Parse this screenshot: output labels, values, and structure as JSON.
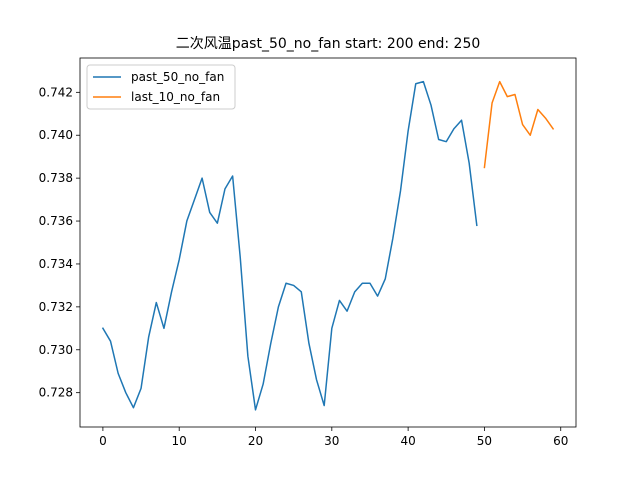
{
  "chart_data": {
    "type": "line",
    "title": "二次风温past_50_no_fan  start: 200 end: 250",
    "xlabel": "",
    "ylabel": "",
    "xlim": [
      -3,
      62
    ],
    "ylim": [
      0.7264,
      0.7436
    ],
    "x_ticks": [
      0,
      10,
      20,
      30,
      40,
      50,
      60
    ],
    "y_ticks": [
      0.728,
      0.73,
      0.732,
      0.734,
      0.736,
      0.738,
      0.74,
      0.742
    ],
    "y_tick_labels": [
      "0.728",
      "0.730",
      "0.732",
      "0.734",
      "0.736",
      "0.738",
      "0.740",
      "0.742"
    ],
    "grid": false,
    "legend": "upper left",
    "series": [
      {
        "name": "past_50_no_fan",
        "color": "#1f77b4",
        "x": [
          0,
          1,
          2,
          3,
          4,
          5,
          6,
          7,
          8,
          9,
          10,
          11,
          12,
          13,
          14,
          15,
          16,
          17,
          18,
          19,
          20,
          21,
          22,
          23,
          24,
          25,
          26,
          27,
          28,
          29,
          30,
          31,
          32,
          33,
          34,
          35,
          36,
          37,
          38,
          39,
          40,
          41,
          42,
          43,
          44,
          45,
          46,
          47,
          48,
          49
        ],
        "y": [
          0.731,
          0.7304,
          0.7289,
          0.728,
          0.7273,
          0.7282,
          0.7306,
          0.7322,
          0.731,
          0.7327,
          0.7342,
          0.736,
          0.737,
          0.738,
          0.7364,
          0.7359,
          0.7375,
          0.7381,
          0.7343,
          0.7297,
          0.7272,
          0.7284,
          0.7303,
          0.732,
          0.7331,
          0.733,
          0.7327,
          0.7303,
          0.7286,
          0.7274,
          0.731,
          0.7323,
          0.7318,
          0.7327,
          0.7331,
          0.7331,
          0.7325,
          0.7333,
          0.7352,
          0.7374,
          0.7402,
          0.7424,
          0.7425,
          0.7414,
          0.7398,
          0.7397,
          0.7403,
          0.7407,
          0.7387,
          0.7358
        ]
      },
      {
        "name": "last_10_no_fan",
        "color": "#ff7f0e",
        "x": [
          50,
          51,
          52,
          53,
          54,
          55,
          56,
          57,
          58,
          59
        ],
        "y": [
          0.7385,
          0.7415,
          0.7425,
          0.7418,
          0.7419,
          0.7405,
          0.74,
          0.7412,
          0.7408,
          0.7403
        ]
      }
    ]
  }
}
